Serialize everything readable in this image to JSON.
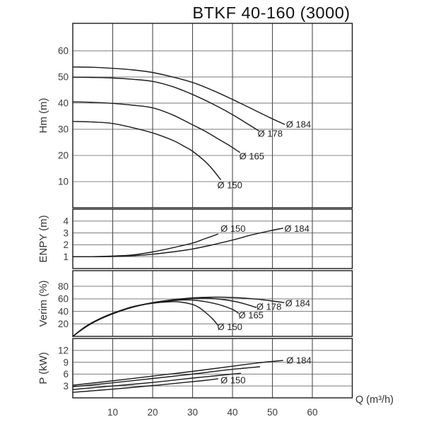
{
  "chart_data": {
    "type": "line",
    "title": "BTKF 40-160 (3000)",
    "x_axis": {
      "label": "Q (m³/h)",
      "ticks": [
        10,
        20,
        30,
        40,
        50,
        60
      ],
      "min": 0,
      "max": 70,
      "grid": true
    },
    "colors": {
      "curve": "#1c1c1c",
      "h_grid": "#8a8a8a",
      "v_grid": "#4d4d4d",
      "border": "#1a1a1a",
      "tick_text": "#3c3c3c",
      "title_text": "#111111"
    },
    "panels": [
      {
        "id": "head",
        "ylabel": "Hm (m)",
        "yticks": [
          10,
          20,
          30,
          40,
          50,
          60
        ],
        "ymin": 0,
        "ymax": 70.5,
        "series": [
          {
            "id": "d184",
            "name": "Ø 184",
            "label_at": [
              53.4,
              31.9
            ],
            "points": [
              [
                0,
                53.8
              ],
              [
                5,
                53.7
              ],
              [
                10,
                53.3
              ],
              [
                15,
                52.7
              ],
              [
                20,
                51.7
              ],
              [
                25,
                50.0
              ],
              [
                30,
                47.9
              ],
              [
                35,
                44.9
              ],
              [
                40,
                41.4
              ],
              [
                45,
                37.7
              ],
              [
                49,
                34.7
              ],
              [
                53,
                31.9
              ]
            ]
          },
          {
            "id": "d178",
            "name": "Ø 178",
            "label_at": [
              46.3,
              28.4
            ],
            "points": [
              [
                0,
                49.9
              ],
              [
                5,
                49.8
              ],
              [
                10,
                49.6
              ],
              [
                15,
                49.1
              ],
              [
                20,
                48.3
              ],
              [
                25,
                46.3
              ],
              [
                30,
                43.3
              ],
              [
                35,
                39.7
              ],
              [
                40,
                35.6
              ],
              [
                43,
                32.8
              ],
              [
                46.5,
                29.5
              ]
            ]
          },
          {
            "id": "d165",
            "name": "Ø 165",
            "label_at": [
              41.7,
              19.7
            ],
            "points": [
              [
                0,
                40.5
              ],
              [
                5,
                40.3
              ],
              [
                10,
                39.9
              ],
              [
                15,
                39.2
              ],
              [
                20,
                38.2
              ],
              [
                25,
                35.5
              ],
              [
                30,
                31.7
              ],
              [
                33,
                29.4
              ],
              [
                36,
                26.7
              ],
              [
                39,
                24.0
              ],
              [
                41.8,
                21.2
              ]
            ]
          },
          {
            "id": "d150",
            "name": "Ø 150",
            "label_at": [
              36.2,
              8.6
            ],
            "points": [
              [
                0,
                33.0
              ],
              [
                5,
                32.8
              ],
              [
                10,
                32.2
              ],
              [
                15,
                30.6
              ],
              [
                20,
                28.6
              ],
              [
                25,
                25.8
              ],
              [
                28,
                23.4
              ],
              [
                30,
                21.6
              ],
              [
                33,
                17.9
              ],
              [
                35,
                14.7
              ],
              [
                37,
                10.8
              ]
            ]
          }
        ]
      },
      {
        "id": "npsh",
        "ylabel": "ENPY (m)",
        "yticks": [
          1,
          2,
          3,
          4
        ],
        "ymin": 0,
        "ymax": 5,
        "series": [
          {
            "id": "d150",
            "name": "Ø 150",
            "label_at": [
              37.0,
              3.35
            ],
            "points": [
              [
                0,
                1.0
              ],
              [
                5,
                1.0
              ],
              [
                10,
                1.05
              ],
              [
                15,
                1.15
              ],
              [
                20,
                1.4
              ],
              [
                25,
                1.75
              ],
              [
                30,
                2.15
              ],
              [
                33,
                2.5
              ],
              [
                36.3,
                2.9
              ]
            ]
          },
          {
            "id": "d184",
            "name": "Ø 184",
            "label_at": [
              53.0,
              3.35
            ],
            "points": [
              [
                0,
                1.0
              ],
              [
                5,
                1.0
              ],
              [
                10,
                1.02
              ],
              [
                15,
                1.08
              ],
              [
                20,
                1.2
              ],
              [
                25,
                1.4
              ],
              [
                30,
                1.65
              ],
              [
                35,
                2.0
              ],
              [
                40,
                2.4
              ],
              [
                45,
                2.85
              ],
              [
                49,
                3.15
              ],
              [
                52.6,
                3.4
              ]
            ]
          }
        ]
      },
      {
        "id": "efficiency",
        "ylabel": "Verim (%)",
        "yticks": [
          20,
          40,
          60,
          80
        ],
        "ymin": 0,
        "ymax": 105,
        "series": [
          {
            "id": "d184",
            "name": "Ø 184",
            "label_at": [
              53.2,
              53.0
            ],
            "points": [
              [
                0,
                0
              ],
              [
                3,
                14
              ],
              [
                6,
                25
              ],
              [
                10,
                36
              ],
              [
                15,
                47
              ],
              [
                20,
                54
              ],
              [
                25,
                58.5
              ],
              [
                30,
                61.5
              ],
              [
                34,
                62.5
              ],
              [
                38,
                62.5
              ],
              [
                42,
                61.5
              ],
              [
                46,
                59.5
              ],
              [
                50,
                56.5
              ],
              [
                52.9,
                54
              ]
            ]
          },
          {
            "id": "d178",
            "name": "Ø 178",
            "label_at": [
              46.0,
              47.4
            ],
            "points": [
              [
                0,
                0
              ],
              [
                3,
                14
              ],
              [
                6,
                25
              ],
              [
                10,
                36
              ],
              [
                15,
                46.5
              ],
              [
                20,
                53.5
              ],
              [
                25,
                57.5
              ],
              [
                30,
                60.5
              ],
              [
                33,
                61
              ],
              [
                36,
                60
              ],
              [
                40,
                56.5
              ],
              [
                43,
                52
              ],
              [
                45.9,
                46.3
              ]
            ]
          },
          {
            "id": "d165",
            "name": "Ø 165",
            "label_at": [
              41.5,
              33.9
            ],
            "points": [
              [
                0,
                0
              ],
              [
                3,
                14.5
              ],
              [
                6,
                25.5
              ],
              [
                10,
                36.5
              ],
              [
                15,
                47
              ],
              [
                20,
                53.5
              ],
              [
                24,
                56.5
              ],
              [
                28,
                58.3
              ],
              [
                31,
                57.5
              ],
              [
                34,
                54.5
              ],
              [
                37,
                50
              ],
              [
                40,
                43
              ],
              [
                41.5,
                37
              ]
            ]
          },
          {
            "id": "d150",
            "name": "Ø 150",
            "label_at": [
              36.2,
              15.2
            ],
            "points": [
              [
                0,
                0
              ],
              [
                3,
                15
              ],
              [
                6,
                26
              ],
              [
                10,
                37
              ],
              [
                15,
                47.5
              ],
              [
                20,
                53
              ],
              [
                24,
                55.2
              ],
              [
                27,
                54.8
              ],
              [
                30,
                51
              ],
              [
                31.5,
                46.5
              ],
              [
                33,
                39.5
              ],
              [
                35,
                28
              ],
              [
                36.3,
                18
              ]
            ]
          }
        ]
      },
      {
        "id": "power",
        "ylabel": "P (kW)",
        "yticks": [
          3,
          6,
          9,
          12
        ],
        "ymin": 0,
        "ymax": 15,
        "series": [
          {
            "id": "d184",
            "name": "Ø 184",
            "label_at": [
              53.5,
              9.5
            ],
            "points": [
              [
                0,
                3.2
              ],
              [
                10,
                4.3
              ],
              [
                20,
                5.5
              ],
              [
                30,
                6.7
              ],
              [
                40,
                8.0
              ],
              [
                47,
                8.9
              ],
              [
                52.6,
                9.45
              ]
            ]
          },
          {
            "id": "d178",
            "name": "Ø 178",
            "label_at": null,
            "points": [
              [
                0,
                2.8
              ],
              [
                10,
                3.8
              ],
              [
                20,
                4.9
              ],
              [
                30,
                6.0
              ],
              [
                38,
                7.0
              ],
              [
                43,
                7.5
              ],
              [
                46.8,
                7.85
              ]
            ]
          },
          {
            "id": "d165",
            "name": "Ø 165",
            "label_at": null,
            "points": [
              [
                0,
                2.1
              ],
              [
                10,
                3.0
              ],
              [
                20,
                3.9
              ],
              [
                30,
                5.0
              ],
              [
                36,
                5.6
              ],
              [
                42,
                6.2
              ]
            ]
          },
          {
            "id": "d150",
            "name": "Ø 150",
            "label_at": [
              37.0,
              4.45
            ],
            "points": [
              [
                0,
                1.4
              ],
              [
                10,
                2.2
              ],
              [
                20,
                3.1
              ],
              [
                28,
                3.9
              ],
              [
                33,
                4.4
              ],
              [
                36.3,
                4.8
              ]
            ]
          }
        ]
      }
    ]
  }
}
